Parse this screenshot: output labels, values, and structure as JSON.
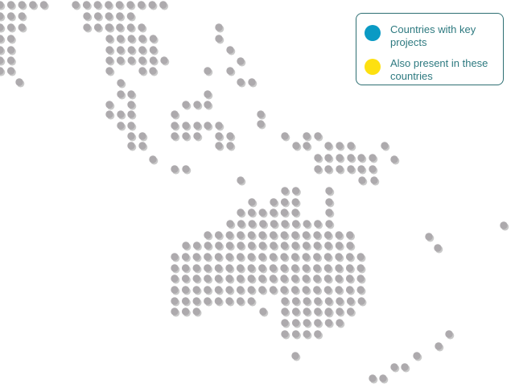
{
  "legend": {
    "items": [
      {
        "label": "Countries with key projects",
        "color": "#0a9ac4"
      },
      {
        "label": "Also present in these countries",
        "color": "#fde011"
      }
    ]
  },
  "map": {
    "dot_color": "#adaaad",
    "shadow_color": "#c9c9c9",
    "highlighted_countries": []
  }
}
